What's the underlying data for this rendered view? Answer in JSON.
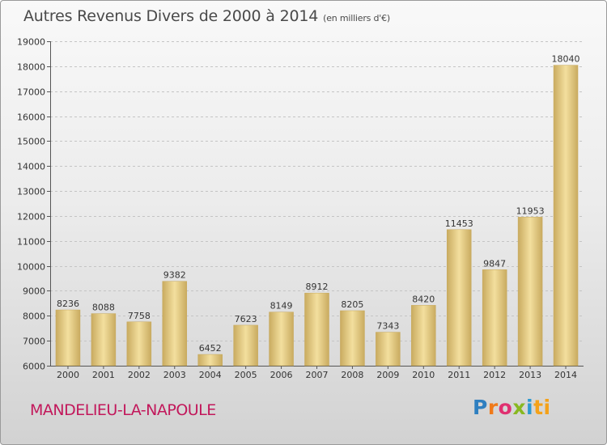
{
  "chart_data": {
    "type": "bar",
    "title": "Autres Revenus Divers de 2000 à 2014",
    "subtitle": "(en milliers d'€)",
    "categories": [
      "2000",
      "2001",
      "2002",
      "2003",
      "2004",
      "2005",
      "2006",
      "2007",
      "2008",
      "2009",
      "2010",
      "2011",
      "2012",
      "2013",
      "2014"
    ],
    "values": [
      8236,
      8088,
      7758,
      9382,
      6452,
      7623,
      8149,
      8912,
      8205,
      7343,
      8420,
      11453,
      9847,
      11953,
      18040
    ],
    "ylim": [
      6000,
      19000
    ],
    "yticks": [
      6000,
      7000,
      8000,
      9000,
      10000,
      11000,
      12000,
      13000,
      14000,
      15000,
      16000,
      17000,
      18000,
      19000
    ],
    "grid": true,
    "bar_color": "#e6cc84"
  },
  "commune": "MANDELIEU-LA-NAPOULE",
  "logo": {
    "p1": "P",
    "p2": "r",
    "p3": "o",
    "p4": "x",
    "p5": "i",
    "p6": "ti"
  }
}
